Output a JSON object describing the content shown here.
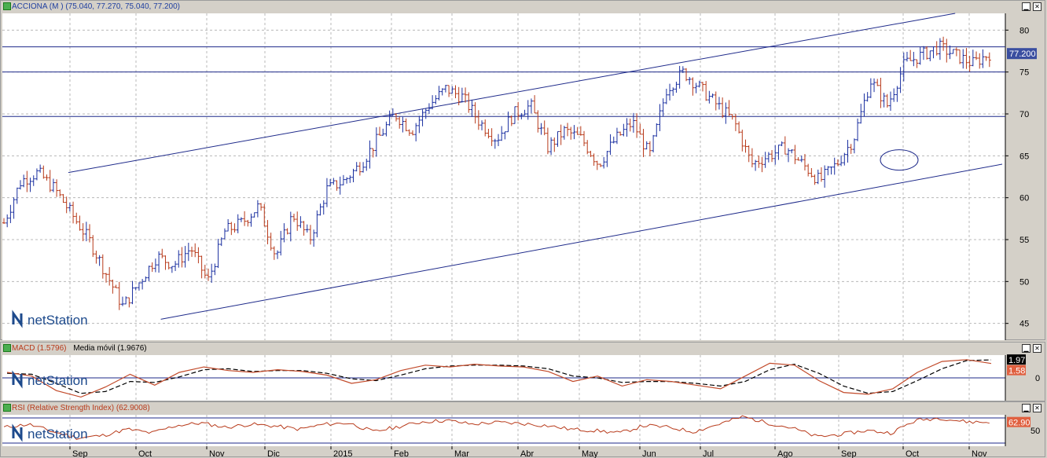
{
  "main_pane": {
    "symbol": "ACCIONA",
    "header": "ACCIONA (M ) (75.040, 77.270, 75.040, 77.200)",
    "last_price_label": "77.200",
    "price_ticks": [
      "80",
      "75",
      "70",
      "65",
      "60",
      "55",
      "50",
      "45"
    ]
  },
  "macd_pane": {
    "label": "MACD (1.5796)",
    "sublabel": "Media móvil (1.9676)",
    "badge_signal": "1.97",
    "badge_macd": "1.58",
    "zero_tick": "0"
  },
  "rsi_pane": {
    "label": "RSI (Relative Strength Index) (62.9008)",
    "badge_rsi": "62.90",
    "tick_50": "50"
  },
  "logo_text": "netStation",
  "x_axis_months": [
    "Sep",
    "Oct",
    "Nov",
    "Dic",
    "2015",
    "Feb",
    "Mar",
    "Abr",
    "May",
    "Jun",
    "Jul",
    "Ago",
    "Sep",
    "Oct",
    "Nov"
  ],
  "colors": {
    "up": "#1a2fa0",
    "down": "#b83a1a",
    "macd": "#c24a2a",
    "signal": "#000000",
    "rsi": "#b83a1a",
    "channel": "#1e2a8a"
  },
  "chart_data": [
    {
      "type": "ohlc",
      "title": "ACCIONA (M ) (75.040, 77.270, 75.040, 77.200)",
      "x": [
        "Sep",
        "Oct",
        "Nov",
        "Dic",
        "2015",
        "Feb",
        "Mar",
        "Abr",
        "May",
        "Jun",
        "Jul",
        "Ago",
        "Sep",
        "Oct",
        "Nov"
      ],
      "ylim": [
        43,
        82
      ],
      "close_path": [
        57,
        62,
        63,
        61,
        58,
        55,
        51,
        47,
        50,
        53,
        52,
        54,
        50,
        56,
        57,
        59,
        53,
        58,
        55,
        61,
        62,
        64,
        67,
        70,
        68,
        71,
        73,
        72,
        69,
        67,
        70,
        71,
        66,
        68,
        67,
        64,
        67,
        69,
        65,
        73,
        75,
        73,
        71,
        69,
        64,
        65,
        66,
        64,
        62,
        64,
        67,
        74,
        71,
        76,
        77,
        78,
        77,
        76,
        77.2
      ],
      "horizontal_levels": [
        78,
        75,
        69.7
      ],
      "channel_upper": [
        [
          0.0,
          63
        ],
        [
          1.0,
          82
        ]
      ],
      "channel_lower": [
        [
          0.1,
          45.5
        ],
        [
          1.0,
          64
        ]
      ],
      "last_value": 77.2
    },
    {
      "type": "line",
      "title": "MACD (1.5796)",
      "series": [
        {
          "name": "MACD (1.5796)",
          "values": [
            0.6,
            0.2,
            -1.4,
            -2.1,
            -1.0,
            0.4,
            -0.8,
            0.6,
            1.2,
            0.8,
            0.6,
            0.9,
            0.7,
            0.3,
            -0.6,
            -0.2,
            0.8,
            1.4,
            1.2,
            1.5,
            1.3,
            1.2,
            0.7,
            -0.4,
            0.2,
            -0.9,
            -0.2,
            -0.4,
            -0.8,
            -1.2,
            0.2,
            1.6,
            1.4,
            -0.3,
            -1.6,
            -1.8,
            -1.2,
            0.6,
            1.8,
            2.0,
            1.58
          ]
        },
        {
          "name": "Media móvil (1.9676)",
          "values": [
            0.5,
            0.4,
            -0.6,
            -1.7,
            -1.5,
            -0.4,
            -0.5,
            0.1,
            0.9,
            1.0,
            0.7,
            0.8,
            0.8,
            0.5,
            -0.1,
            -0.3,
            0.3,
            1.0,
            1.3,
            1.4,
            1.4,
            1.3,
            1.0,
            0.2,
            0.0,
            -0.5,
            -0.4,
            -0.4,
            -0.6,
            -0.9,
            -0.4,
            0.9,
            1.5,
            0.5,
            -0.9,
            -1.7,
            -1.5,
            -0.3,
            1.0,
            1.9,
            1.97
          ]
        }
      ],
      "zero_line": true,
      "last_values": {
        "signal": 1.97,
        "macd": 1.58
      }
    },
    {
      "type": "line",
      "title": "RSI (Relative Strength Index) (62.9008)",
      "series": [
        {
          "name": "RSI (Relative Strength Index) (62.9008)",
          "values": [
            55,
            60,
            48,
            38,
            42,
            52,
            46,
            58,
            62,
            55,
            60,
            57,
            52,
            60,
            62,
            48,
            56,
            64,
            66,
            60,
            63,
            61,
            58,
            52,
            50,
            46,
            58,
            55,
            48,
            60,
            72,
            62,
            54,
            40,
            44,
            50,
            46,
            66,
            70,
            64,
            62.9
          ]
        }
      ],
      "levels": [
        70,
        30
      ],
      "last_value": 62.9
    }
  ]
}
